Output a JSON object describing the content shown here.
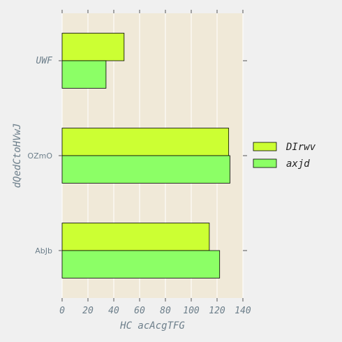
{
  "chart_data": {
    "type": "bar",
    "orientation": "horizontal",
    "categories": [
      "UWF",
      "OZmO",
      "AbJb"
    ],
    "series": [
      {
        "name": "DIrwv",
        "values": [
          48,
          129,
          114
        ],
        "color": "#ccff33"
      },
      {
        "name": "axjd",
        "values": [
          34,
          130,
          122
        ],
        "color": "#8cff66"
      }
    ],
    "xlabel": "HC acAcgTFG",
    "ylabel": "dQedCtoHVwJ",
    "xlim": [
      0,
      140
    ],
    "xticks": [
      "0",
      "20",
      "40",
      "60",
      "80",
      "100",
      "120",
      "140"
    ],
    "grid": true,
    "legend_position": "right",
    "plot_background": "#f0e9d8",
    "grid_color": "#ffffff"
  }
}
